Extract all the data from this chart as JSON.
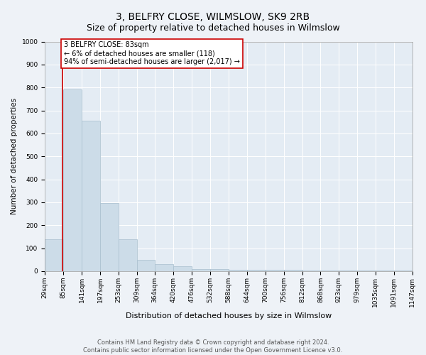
{
  "title": "3, BELFRY CLOSE, WILMSLOW, SK9 2RB",
  "subtitle": "Size of property relative to detached houses in Wilmslow",
  "xlabel": "Distribution of detached houses by size in Wilmslow",
  "ylabel": "Number of detached properties",
  "bins": [
    29,
    85,
    141,
    197,
    253,
    309,
    364,
    420,
    476,
    532,
    588,
    644,
    700,
    756,
    812,
    868,
    923,
    979,
    1035,
    1091,
    1147
  ],
  "bar_heights": [
    140,
    790,
    655,
    295,
    140,
    50,
    30,
    20,
    10,
    10,
    5,
    5,
    5,
    5,
    2,
    2,
    2,
    2,
    2,
    2
  ],
  "bar_color": "#ccdce8",
  "bar_edge_color": "#a8bfce",
  "property_line_x": 83,
  "property_line_color": "#cc0000",
  "annotation_text": "3 BELFRY CLOSE: 83sqm\n← 6% of detached houses are smaller (118)\n94% of semi-detached houses are larger (2,017) →",
  "annotation_box_facecolor": "#ffffff",
  "annotation_box_edgecolor": "#cc0000",
  "ylim": [
    0,
    1000
  ],
  "yticks": [
    0,
    100,
    200,
    300,
    400,
    500,
    600,
    700,
    800,
    900,
    1000
  ],
  "footnote": "Contains HM Land Registry data © Crown copyright and database right 2024.\nContains public sector information licensed under the Open Government Licence v3.0.",
  "background_color": "#eef2f7",
  "plot_background_color": "#e4ecf4",
  "grid_color": "#ffffff",
  "title_fontsize": 10,
  "subtitle_fontsize": 9,
  "xlabel_fontsize": 8,
  "ylabel_fontsize": 7.5,
  "tick_fontsize": 6.5,
  "footnote_fontsize": 6,
  "annotation_fontsize": 7
}
